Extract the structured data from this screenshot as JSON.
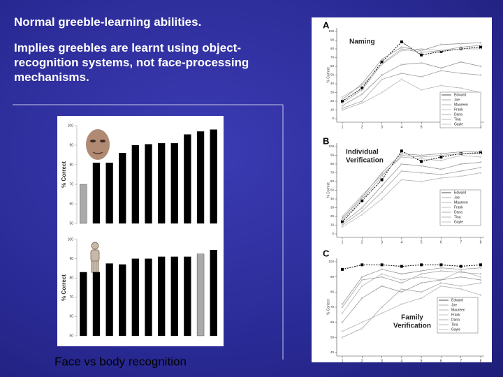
{
  "header": {
    "lines": [
      "Normal greeble-learning abilities.",
      "Implies greebles are learnt using object-recognition systems, not face-processing mechanisms."
    ]
  },
  "caption": "Face vs body recognition",
  "bar_charts": [
    {
      "ylabel": "% Correct",
      "ylim": [
        50,
        100
      ],
      "yticks": [
        50,
        60,
        70,
        80,
        90,
        100
      ],
      "values": [
        70,
        81,
        81,
        86,
        90,
        90.5,
        91,
        91,
        95.5,
        97,
        98
      ],
      "colors": [
        "#aaaaaa",
        "#000000",
        "#000000",
        "#000000",
        "#000000",
        "#000000",
        "#000000",
        "#000000",
        "#000000",
        "#000000",
        "#000000"
      ]
    },
    {
      "ylabel": "% Correct",
      "ylim": [
        50,
        100
      ],
      "yticks": [
        50,
        60,
        70,
        80,
        90,
        100
      ],
      "values": [
        83,
        83,
        87.5,
        87,
        90,
        90,
        91,
        91,
        91,
        92.5,
        94.5
      ],
      "colors": [
        "#000000",
        "#000000",
        "#000000",
        "#000000",
        "#000000",
        "#000000",
        "#000000",
        "#000000",
        "#000000",
        "#aaaaaa",
        "#000000"
      ]
    }
  ],
  "line_charts": [
    {
      "label": "A",
      "title": [
        "Naming"
      ],
      "ylabel": "% Correct",
      "x": [
        1,
        2,
        3,
        4,
        5,
        6,
        7,
        8
      ],
      "ylim": [
        0,
        100
      ],
      "yticks": [
        0,
        10,
        20,
        30,
        40,
        50,
        60,
        70,
        80,
        90,
        100
      ],
      "series": [
        {
          "name": "Edward",
          "color": "#000000",
          "values": [
            20,
            35,
            65,
            88,
            73,
            77,
            80,
            82
          ]
        },
        {
          "name": "Joe",
          "color": "#888888",
          "values": [
            22,
            40,
            68,
            82,
            78,
            85,
            86,
            87
          ]
        },
        {
          "name": "Maureen",
          "color": "#999999",
          "values": [
            18,
            33,
            63,
            80,
            76,
            78,
            82,
            84
          ]
        },
        {
          "name": "Frank",
          "color": "#aaaaaa",
          "values": [
            25,
            38,
            62,
            78,
            80,
            78,
            80,
            80
          ]
        },
        {
          "name": "Dana",
          "color": "#888888",
          "values": [
            15,
            28,
            50,
            62,
            64,
            58,
            65,
            60
          ]
        },
        {
          "name": "Tina",
          "color": "#999999",
          "values": [
            12,
            20,
            45,
            52,
            48,
            55,
            52,
            50
          ]
        },
        {
          "name": "Gayle",
          "color": "#aaaaaa",
          "values": [
            10,
            18,
            30,
            45,
            33,
            38,
            35,
            30
          ]
        }
      ]
    },
    {
      "label": "B",
      "title": [
        "Individual",
        "Verification"
      ],
      "ylabel": "% Correct",
      "x": [
        1,
        2,
        3,
        4,
        5,
        6,
        7,
        8
      ],
      "ylim": [
        0,
        100
      ],
      "yticks": [
        0,
        10,
        20,
        30,
        40,
        50,
        60,
        70,
        80,
        90,
        100
      ],
      "series": [
        {
          "name": "Edward",
          "color": "#000000",
          "values": [
            14,
            38,
            62,
            95,
            83,
            88,
            92,
            93
          ]
        },
        {
          "name": "Joe",
          "color": "#888888",
          "values": [
            18,
            42,
            70,
            92,
            90,
            92,
            94,
            95
          ]
        },
        {
          "name": "Maureen",
          "color": "#999999",
          "values": [
            16,
            40,
            66,
            90,
            88,
            90,
            92,
            92
          ]
        },
        {
          "name": "Frank",
          "color": "#aaaaaa",
          "values": [
            20,
            44,
            68,
            88,
            86,
            84,
            90,
            88
          ]
        },
        {
          "name": "Dana",
          "color": "#888888",
          "values": [
            12,
            30,
            55,
            80,
            78,
            74,
            80,
            82
          ]
        },
        {
          "name": "Tina",
          "color": "#999999",
          "values": [
            10,
            26,
            48,
            72,
            70,
            68,
            72,
            76
          ]
        },
        {
          "name": "Gayle",
          "color": "#aaaaaa",
          "values": [
            8,
            22,
            40,
            62,
            60,
            64,
            66,
            70
          ]
        }
      ]
    },
    {
      "label": "C",
      "title": [
        "Family",
        "Verification"
      ],
      "ylabel": "% Correct",
      "x": [
        1,
        2,
        3,
        4,
        5,
        6,
        7,
        8
      ],
      "ylim": [
        40,
        100
      ],
      "yticks": [
        40,
        50,
        60,
        70,
        80,
        90,
        100
      ],
      "series": [
        {
          "name": "Edward",
          "color": "#000000",
          "values": [
            95,
            98,
            98,
            97,
            98,
            98,
            97,
            98
          ]
        },
        {
          "name": "Joe",
          "color": "#888888",
          "values": [
            72,
            90,
            95,
            92,
            94,
            96,
            95,
            96
          ]
        },
        {
          "name": "Maureen",
          "color": "#999999",
          "values": [
            70,
            88,
            90,
            86,
            92,
            94,
            93,
            92
          ]
        },
        {
          "name": "Frank",
          "color": "#aaaaaa",
          "values": [
            66,
            84,
            92,
            88,
            90,
            88,
            94,
            90
          ]
        },
        {
          "name": "Dana",
          "color": "#888888",
          "values": [
            60,
            76,
            84,
            80,
            86,
            88,
            90,
            88
          ]
        },
        {
          "name": "Tina",
          "color": "#999999",
          "values": [
            50,
            56,
            70,
            82,
            80,
            86,
            84,
            86
          ]
        },
        {
          "name": "Gayle",
          "color": "#aaaaaa",
          "values": [
            54,
            60,
            66,
            72,
            76,
            84,
            82,
            78
          ]
        }
      ]
    }
  ]
}
